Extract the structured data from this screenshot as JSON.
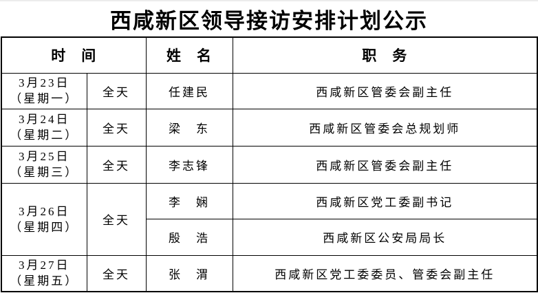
{
  "page_title": "西咸新区领导接访安排计划公示",
  "colors": {
    "text": "#000000",
    "border": "#000000",
    "background": "#ffffff"
  },
  "table": {
    "headers": {
      "time": "时　间",
      "name": "姓　名",
      "position": "职　务"
    },
    "rows": [
      {
        "date": "3月23日",
        "weekday": "（星期一）",
        "period": "全天",
        "name": "任建民",
        "position": "西咸新区管委会副主任"
      },
      {
        "date": "3月24日",
        "weekday": "（星期二）",
        "period": "全天",
        "name": "梁　东",
        "position": "西咸新区管委会总规划师"
      },
      {
        "date": "3月25日",
        "weekday": "（星期三）",
        "period": "全天",
        "name": "李志锋",
        "position": "西咸新区管委会副主任"
      },
      {
        "date": "3月26日",
        "weekday": "（星期四）",
        "period": "全天",
        "name": "李　娴",
        "position": "西咸新区党工委副书记"
      },
      {
        "name": "殷　浩",
        "position": "西咸新区公安局局长"
      },
      {
        "date": "3月27日",
        "weekday": "（星期五）",
        "period": "全天",
        "name": "张　渭",
        "position": "西咸新区党工委委员、管委会副主任"
      }
    ]
  }
}
